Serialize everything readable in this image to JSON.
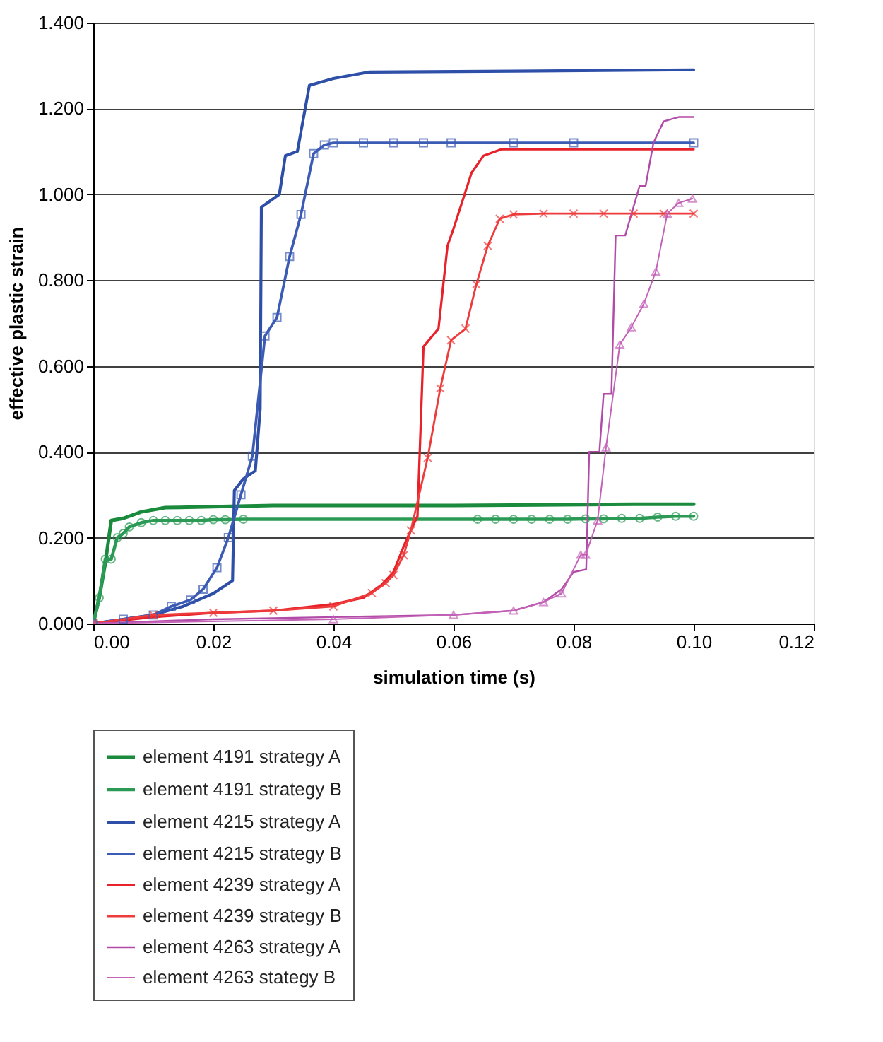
{
  "chart_data": {
    "type": "line",
    "xlabel": "simulation time (s)",
    "ylabel": "effective plastic strain",
    "xlim": [
      0,
      0.12
    ],
    "ylim": [
      0,
      1.4
    ],
    "xticks": [
      {
        "value": 0,
        "label": "0.00"
      },
      {
        "value": 0.02,
        "label": "0.02"
      },
      {
        "value": 0.04,
        "label": "0.04"
      },
      {
        "value": 0.06,
        "label": "0.06"
      },
      {
        "value": 0.08,
        "label": "0.08"
      },
      {
        "value": 0.1,
        "label": "0.10"
      },
      {
        "value": 0.12,
        "label": "0.12"
      }
    ],
    "yticks": [
      {
        "value": 0,
        "label": "0.000"
      },
      {
        "value": 0.2,
        "label": "0.200"
      },
      {
        "value": 0.4,
        "label": "0.400"
      },
      {
        "value": 0.6,
        "label": "0.600"
      },
      {
        "value": 0.8,
        "label": "0.800"
      },
      {
        "value": 1,
        "label": "1.000"
      },
      {
        "value": 1.2,
        "label": "1.200"
      },
      {
        "value": 1.4,
        "label": "1.400"
      }
    ],
    "grid": "y",
    "legend": "bottom",
    "line_style": "solid",
    "series": [
      {
        "name": "element 4191 strategy A",
        "color": "#1a8a3c",
        "marker": "none",
        "x": [
          0,
          0.001,
          0.002,
          0.003,
          0.005,
          0.008,
          0.012,
          0.02,
          0.03,
          0.06,
          0.09,
          0.1
        ],
        "values": [
          0,
          0.06,
          0.14,
          0.24,
          0.245,
          0.26,
          0.27,
          0.272,
          0.275,
          0.275,
          0.278,
          0.278
        ]
      },
      {
        "name": "element 4191 strategy B",
        "color": "#2a9a55",
        "marker": "circle",
        "x": [
          0,
          0.001,
          0.002,
          0.003,
          0.004,
          0.005,
          0.006,
          0.008,
          0.01,
          0.012,
          0.014,
          0.016,
          0.018,
          0.02,
          0.022,
          0.025,
          0.064,
          0.067,
          0.07,
          0.073,
          0.076,
          0.079,
          0.082,
          0.085,
          0.088,
          0.091,
          0.094,
          0.097,
          0.1
        ],
        "values": [
          0,
          0.06,
          0.15,
          0.15,
          0.2,
          0.21,
          0.225,
          0.235,
          0.24,
          0.24,
          0.24,
          0.24,
          0.24,
          0.242,
          0.242,
          0.243,
          0.243,
          0.243,
          0.243,
          0.243,
          0.243,
          0.243,
          0.244,
          0.244,
          0.245,
          0.245,
          0.248,
          0.25,
          0.25
        ]
      },
      {
        "name": "element 4215 strategy A",
        "color": "#2e4fa8",
        "marker": "none",
        "x": [
          0,
          0.005,
          0.01,
          0.015,
          0.02,
          0.0232,
          0.0235,
          0.025,
          0.027,
          0.0278,
          0.028,
          0.029,
          0.031,
          0.032,
          0.034,
          0.036,
          0.04,
          0.046,
          0.07,
          0.1
        ],
        "values": [
          0,
          0.01,
          0.02,
          0.04,
          0.07,
          0.1,
          0.31,
          0.337,
          0.356,
          0.5,
          0.97,
          0.98,
          1.0,
          1.09,
          1.1,
          1.254,
          1.27,
          1.285,
          1.287,
          1.29
        ]
      },
      {
        "name": "element 4215 strategy B",
        "color": "#3b5bb5",
        "marker": "square",
        "x": [
          0,
          0.005,
          0.01,
          0.013,
          0.0162,
          0.0183,
          0.0206,
          0.0225,
          0.0246,
          0.0265,
          0.0286,
          0.0306,
          0.0327,
          0.0346,
          0.0367,
          0.0385,
          0.04,
          0.045,
          0.05,
          0.055,
          0.0596,
          0.07,
          0.08,
          0.1
        ],
        "values": [
          0,
          0.01,
          0.02,
          0.04,
          0.055,
          0.08,
          0.13,
          0.2,
          0.3,
          0.39,
          0.67,
          0.713,
          0.855,
          0.953,
          1.095,
          1.115,
          1.12,
          1.12,
          1.12,
          1.12,
          1.12,
          1.12,
          1.12,
          1.12
        ]
      },
      {
        "name": "element 4239 strategy A",
        "color": "#e8222a",
        "marker": "none",
        "x": [
          0,
          0.01,
          0.02,
          0.03,
          0.04,
          0.045,
          0.048,
          0.05,
          0.052,
          0.054,
          0.055,
          0.0575,
          0.059,
          0.06,
          0.063,
          0.065,
          0.068,
          0.1
        ],
        "values": [
          0,
          0.015,
          0.025,
          0.03,
          0.045,
          0.06,
          0.09,
          0.12,
          0.19,
          0.25,
          0.645,
          0.687,
          0.88,
          0.92,
          1.05,
          1.09,
          1.105,
          1.105
        ]
      },
      {
        "name": "element 4239 strategy B",
        "color": "#ee3b3b",
        "marker": "cross",
        "x": [
          0,
          0.01,
          0.02,
          0.03,
          0.04,
          0.0464,
          0.0487,
          0.05,
          0.0517,
          0.0529,
          0.0557,
          0.0578,
          0.0596,
          0.062,
          0.0638,
          0.0657,
          0.0677,
          0.07,
          0.075,
          0.08,
          0.085,
          0.09,
          0.095,
          0.1
        ],
        "values": [
          0,
          0.02,
          0.025,
          0.03,
          0.04,
          0.071,
          0.094,
          0.113,
          0.159,
          0.217,
          0.386,
          0.548,
          0.66,
          0.687,
          0.79,
          0.88,
          0.943,
          0.953,
          0.955,
          0.955,
          0.955,
          0.955,
          0.955,
          0.955
        ]
      },
      {
        "name": "element 4263 strategy A",
        "color": "#b24aa8",
        "marker": "none",
        "x": [
          0,
          0.02,
          0.04,
          0.06,
          0.07,
          0.075,
          0.078,
          0.08,
          0.0821,
          0.0826,
          0.0843,
          0.085,
          0.0863,
          0.087,
          0.0886,
          0.091,
          0.092,
          0.0933,
          0.095,
          0.0975,
          0.1
        ],
        "values": [
          0,
          0.01,
          0.015,
          0.02,
          0.03,
          0.05,
          0.08,
          0.12,
          0.126,
          0.4,
          0.4,
          0.535,
          0.535,
          0.904,
          0.904,
          1.02,
          1.02,
          1.12,
          1.17,
          1.18,
          1.18
        ]
      },
      {
        "name": "element 4263 stategy B",
        "color": "#c462b8",
        "marker": "triangle",
        "x": [
          0,
          0.04,
          0.06,
          0.07,
          0.075,
          0.078,
          0.0812,
          0.082,
          0.084,
          0.0854,
          0.0877,
          0.0896,
          0.0917,
          0.0937,
          0.0956,
          0.0975,
          0.0998
        ],
        "values": [
          0,
          0.01,
          0.02,
          0.03,
          0.05,
          0.07,
          0.16,
          0.16,
          0.24,
          0.41,
          0.65,
          0.69,
          0.745,
          0.82,
          0.955,
          0.98,
          0.99
        ]
      }
    ]
  }
}
